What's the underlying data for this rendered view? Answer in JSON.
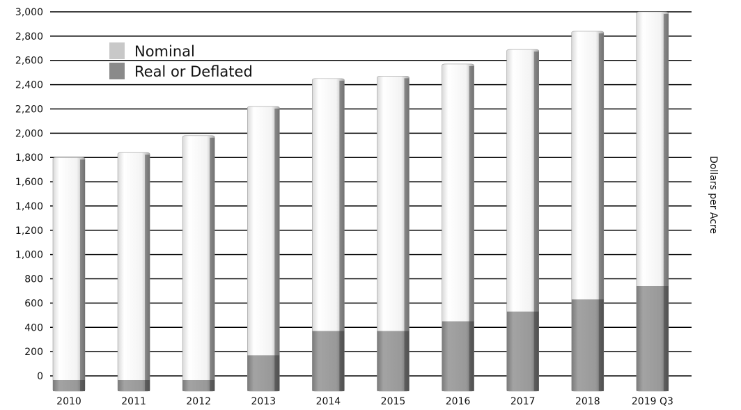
{
  "chart_data": {
    "type": "bar",
    "title": "",
    "xlabel": "",
    "ylabel": "Dollars per Acre",
    "ylim": [
      0,
      3000
    ],
    "yticks": [
      0,
      200,
      400,
      600,
      800,
      1000,
      1200,
      1400,
      1600,
      1800,
      2000,
      2200,
      2400,
      2600,
      2800,
      3000
    ],
    "ytick_labels": [
      "0",
      "200",
      "400",
      "600",
      "800",
      "1,000",
      "1,200",
      "1,400",
      "1,600",
      "1,800",
      "2,000",
      "2,200",
      "2,400",
      "2,600",
      "2,800",
      "3,000"
    ],
    "categories": [
      "2010",
      "2011",
      "2012",
      "2013",
      "2014",
      "2015",
      "2016",
      "2017",
      "2018",
      "2019 Q3"
    ],
    "series": [
      {
        "name": "Nominal",
        "values": [
          1800,
          1840,
          1980,
          2220,
          2450,
          2470,
          2570,
          2690,
          2840,
          3000
        ]
      },
      {
        "name": "Real or Deflated",
        "values": [
          0,
          -30,
          -30,
          170,
          370,
          370,
          450,
          530,
          630,
          740
        ]
      }
    ],
    "grid": true,
    "legend_position": "top-left",
    "colors": {
      "nominal": "#f2f2f2",
      "real": "#8c8c8c",
      "grid": "#000000",
      "legend_nominal": "#c8c8c8",
      "legend_real": "#8a8a8a"
    }
  }
}
